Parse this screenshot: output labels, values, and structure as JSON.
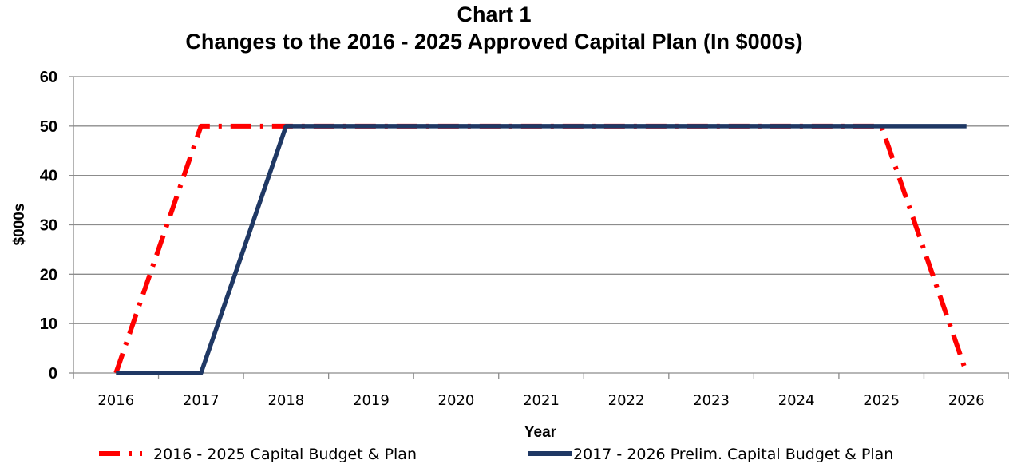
{
  "chart_data": {
    "type": "line",
    "title": "Chart 1",
    "subtitle": "Changes to the 2016 - 2025 Approved Capital Plan (In $000s)",
    "xlabel": "Year",
    "ylabel": "$000s",
    "categories": [
      "2016",
      "2017",
      "2018",
      "2019",
      "2020",
      "2021",
      "2022",
      "2023",
      "2024",
      "2025",
      "2026"
    ],
    "ylim": [
      0,
      60
    ],
    "yticks": [
      "0",
      "10",
      "20",
      "30",
      "40",
      "50",
      "60"
    ],
    "grid": "horizontal",
    "legend": "bottom",
    "series": [
      {
        "name": "2016 - 2025 Capital Budget & Plan",
        "values": [
          0,
          50,
          50,
          50,
          50,
          50,
          50,
          50,
          50,
          50,
          0
        ],
        "color": "#ff0000",
        "style": "dash-dot"
      },
      {
        "name": "2017 - 2026 Prelim. Capital Budget & Plan",
        "values": [
          0,
          0,
          50,
          50,
          50,
          50,
          50,
          50,
          50,
          50,
          50
        ],
        "color": "#1f3864",
        "style": "solid"
      }
    ]
  }
}
